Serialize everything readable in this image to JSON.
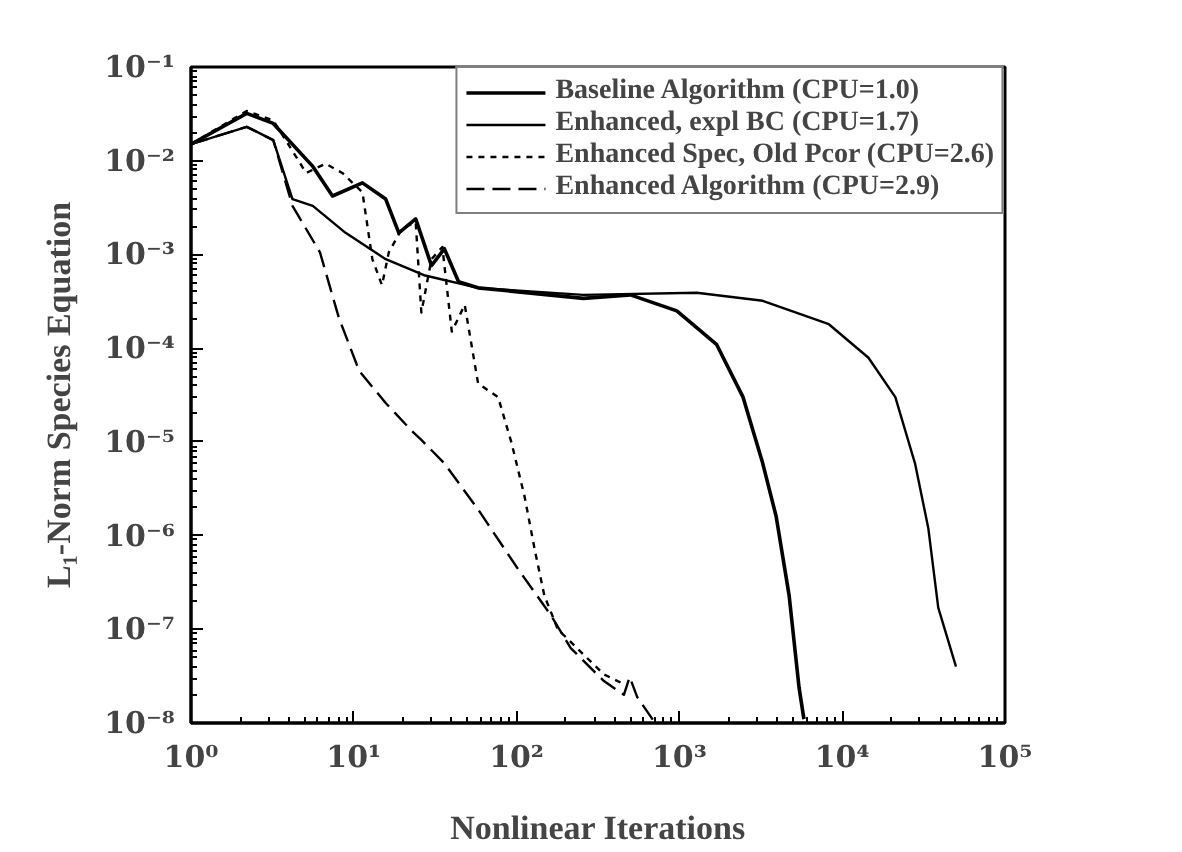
{
  "chart_data": {
    "type": "line",
    "xlabel": "Nonlinear Iterations",
    "ylabel": "L₁-Norm Species Equation",
    "log": "xy",
    "xlim": [
      1,
      100000
    ],
    "ylim": [
      1e-08,
      0.1
    ],
    "xticks": [
      {
        "value": 1,
        "label": "10⁰"
      },
      {
        "value": 10,
        "label": "10¹"
      },
      {
        "value": 100,
        "label": "10²"
      },
      {
        "value": 1000,
        "label": "10³"
      },
      {
        "value": 10000,
        "label": "10⁴"
      },
      {
        "value": 100000,
        "label": "10⁵"
      }
    ],
    "yticks": [
      {
        "value": 1e-08,
        "label": "10⁻⁸"
      },
      {
        "value": 1e-07,
        "label": "10⁻⁷"
      },
      {
        "value": 1e-06,
        "label": "10⁻⁶"
      },
      {
        "value": 1e-05,
        "label": "10⁻⁵"
      },
      {
        "value": 0.0001,
        "label": "10⁻⁴"
      },
      {
        "value": 0.001,
        "label": "10⁻³"
      },
      {
        "value": 0.01,
        "label": "10⁻²"
      },
      {
        "value": 0.1,
        "label": "10⁻¹"
      }
    ],
    "grid": false,
    "legend": "top right",
    "series": [
      {
        "name": "Baseline Algorithm (CPU=1.0)",
        "color": "#000000",
        "line_style": "solid",
        "x": [
          1,
          2.2,
          3.2,
          5.6,
          7.4,
          11.3,
          15.7,
          18.9,
          24,
          30,
          36,
          44,
          58,
          257,
          500,
          964,
          1690,
          2460,
          3250,
          3930,
          4720,
          5430,
          5820
        ],
        "values": [
          0.015,
          0.032,
          0.025,
          0.0087,
          0.0042,
          0.0058,
          0.0039,
          0.0017,
          0.0024,
          0.00076,
          0.00115,
          0.00051,
          0.00044,
          0.00034,
          0.00037,
          0.00025,
          0.00011,
          3e-05,
          5.9e-06,
          1.6e-06,
          2.3e-07,
          2.4e-08,
          1.1e-08
        ]
      },
      {
        "name": "Enhanced, expl BC (CPU=1.7)",
        "color": "#000000",
        "line_style": "solid",
        "x": [
          1,
          2.2,
          3.2,
          4.2,
          5.6,
          8.9,
          15.7,
          27,
          58,
          257,
          1280,
          3250,
          8280,
          14500,
          21200,
          28000,
          33800,
          38900,
          50000
        ],
        "values": [
          0.015,
          0.023,
          0.0166,
          0.0039,
          0.0033,
          0.0017,
          0.00089,
          0.0006,
          0.00044,
          0.00037,
          0.00039,
          0.00032,
          0.00018,
          7.9e-05,
          3e-05,
          5.9e-06,
          1.2e-06,
          1.7e-07,
          4e-08
        ]
      },
      {
        "name": "Enhanced Spec, Old Pcor (CPU=2.6)",
        "color": "#000000",
        "line_style": "dotted",
        "x": [
          1,
          2.2,
          3.2,
          5.1,
          6.7,
          8.5,
          11.3,
          13,
          14.9,
          16.4,
          19.8,
          24,
          26,
          30,
          35,
          40,
          48,
          58,
          77,
          93,
          112,
          129,
          148,
          179,
          257,
          344,
          456
        ],
        "values": [
          0.015,
          0.034,
          0.027,
          0.0074,
          0.0093,
          0.0074,
          0.0046,
          0.00089,
          0.00047,
          0.00105,
          0.0019,
          0.0022,
          0.00024,
          0.00089,
          0.0012,
          0.00015,
          0.00029,
          4.2e-05,
          3e-05,
          9.8e-06,
          2.6e-06,
          7.2e-07,
          2.3e-07,
          1e-07,
          5.4e-08,
          3.3e-08,
          2.6e-08
        ]
      },
      {
        "name": "Enhanced Algorithm (CPU=2.9)",
        "color": "#000000",
        "line_style": "dashed",
        "x": [
          1,
          2.2,
          3.2,
          4.2,
          6.2,
          8.1,
          10.8,
          15.7,
          22.8,
          26,
          36,
          58,
          102,
          163,
          215,
          344,
          456,
          495,
          550,
          690
        ],
        "values": [
          0.015,
          0.023,
          0.0166,
          0.0033,
          0.00105,
          0.00021,
          5.7e-05,
          2.6e-05,
          1.3e-05,
          1.05e-05,
          5.9e-06,
          1.9e-06,
          4.4e-07,
          1.4e-07,
          6.3e-08,
          2.8e-08,
          2e-08,
          3.1e-08,
          1.9e-08,
          1.07e-08
        ]
      }
    ]
  }
}
